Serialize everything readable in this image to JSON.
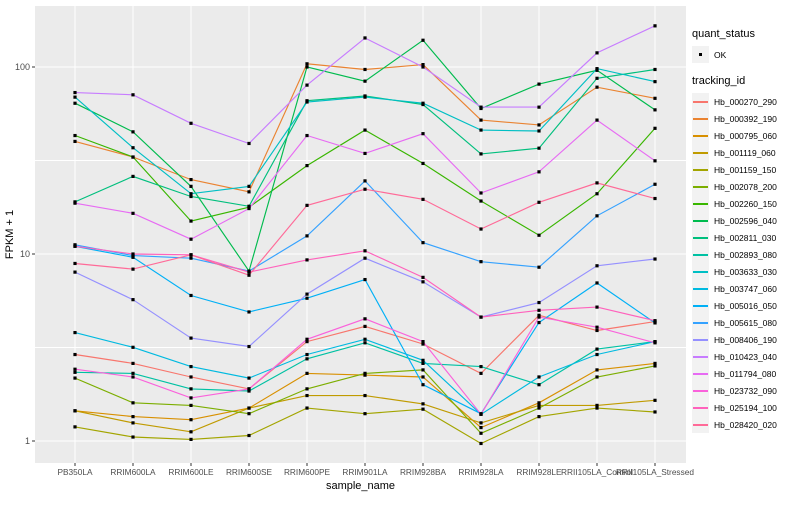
{
  "chart_data": {
    "type": "line",
    "title": "",
    "xlabel": "sample_name",
    "ylabel": "FPKM + 1",
    "y_scale": "log10",
    "y_ticks": [
      "1",
      "10",
      "100"
    ],
    "y_tick_values": [
      1,
      10,
      100
    ],
    "y_minor_gridline_values": [
      3.162,
      31.62
    ],
    "panel_bg": "#EBEBEB",
    "grid_color": "#FFFFFF",
    "tick_label_color": "#4D4D4D",
    "point_symbol": "black-square",
    "legend_position": "right",
    "categories": [
      "PB350LA",
      "RRIM600LA",
      "RRIM600LE",
      "RRIM600SE",
      "RRIM600PE",
      "RRIM901LA",
      "RRIM928BA",
      "RRIM928LA",
      "RRIM928LE",
      "RRII105LA_Control",
      "RRII105LA_Stressed"
    ],
    "series": [
      {
        "name": "Hb_000270_290",
        "color": "#F8766D",
        "values": [
          2.9,
          2.6,
          2.2,
          1.9,
          3.4,
          4.1,
          3.3,
          2.3,
          4.7,
          3.9,
          4.35
        ]
      },
      {
        "name": "Hb_000392_190",
        "color": "#EA8331",
        "values": [
          40,
          33,
          25,
          21.5,
          104,
          97,
          103,
          52,
          49,
          78,
          68
        ]
      },
      {
        "name": "Hb_000795_060",
        "color": "#D89000",
        "values": [
          1.45,
          1.35,
          1.3,
          1.5,
          2.3,
          2.25,
          2.2,
          1.18,
          1.6,
          2.4,
          2.6
        ]
      },
      {
        "name": "Hb_001119_060",
        "color": "#C09B00",
        "values": [
          1.45,
          1.25,
          1.12,
          1.5,
          1.75,
          1.75,
          1.58,
          1.25,
          1.55,
          1.55,
          1.65
        ]
      },
      {
        "name": "Hb_001159_150",
        "color": "#A3A500",
        "values": [
          1.19,
          1.05,
          1.02,
          1.07,
          1.5,
          1.4,
          1.48,
          0.97,
          1.35,
          1.5,
          1.43
        ]
      },
      {
        "name": "Hb_002078_200",
        "color": "#7CAE00",
        "values": [
          2.17,
          1.6,
          1.55,
          1.4,
          1.9,
          2.3,
          2.4,
          1.1,
          1.5,
          2.2,
          2.52
        ]
      },
      {
        "name": "Hb_002260_150",
        "color": "#39B600",
        "values": [
          43,
          33,
          15,
          17.8,
          29.7,
          46,
          30.5,
          19.2,
          12.6,
          21,
          47
        ]
      },
      {
        "name": "Hb_002596_040",
        "color": "#00BB4E",
        "values": [
          64,
          45,
          23,
          8.1,
          100,
          84,
          139,
          60,
          81,
          96,
          59
        ]
      },
      {
        "name": "Hb_002811_030",
        "color": "#00BF7D",
        "values": [
          19,
          26,
          20.3,
          18,
          66,
          70,
          63,
          34.3,
          36.8,
          87,
          97
        ]
      },
      {
        "name": "Hb_002893_080",
        "color": "#00C1A3",
        "values": [
          2.33,
          2.3,
          1.9,
          1.85,
          2.75,
          3.35,
          2.6,
          2.5,
          2.0,
          3.1,
          3.4
        ]
      },
      {
        "name": "Hb_003633_030",
        "color": "#00BFC4",
        "values": [
          69,
          37,
          21,
          23,
          65,
          69,
          64,
          46,
          45.5,
          98,
          83.5
        ]
      },
      {
        "name": "Hb_003747_060",
        "color": "#00BAE0",
        "values": [
          3.8,
          3.17,
          2.5,
          2.17,
          2.9,
          3.5,
          2.7,
          1.39,
          2.2,
          2.9,
          3.4
        ]
      },
      {
        "name": "Hb_005016_050",
        "color": "#00B0F6",
        "values": [
          11,
          9.6,
          6.0,
          4.9,
          5.8,
          7.3,
          2.0,
          1.4,
          4.3,
          7.0,
          4.28
        ]
      },
      {
        "name": "Hb_005615_080",
        "color": "#35A2FF",
        "values": [
          11.2,
          9.8,
          9.5,
          8.1,
          12.5,
          24.6,
          11.5,
          9.1,
          8.5,
          16,
          23.6
        ]
      },
      {
        "name": "Hb_008406_190",
        "color": "#9590FF",
        "values": [
          8.0,
          5.7,
          3.55,
          3.2,
          6.1,
          9.5,
          7.1,
          4.6,
          5.5,
          8.65,
          9.4
        ]
      },
      {
        "name": "Hb_010423_040",
        "color": "#C77CFF",
        "values": [
          73,
          71,
          50,
          39,
          80,
          143,
          100,
          61,
          61,
          119,
          166
        ]
      },
      {
        "name": "Hb_011794_080",
        "color": "#E76BF3",
        "values": [
          18.7,
          16.5,
          12,
          17.5,
          43,
          34.5,
          44,
          21.2,
          27.5,
          52,
          31.5
        ]
      },
      {
        "name": "Hb_023732_090",
        "color": "#FA62DB",
        "values": [
          2.42,
          2.2,
          1.7,
          1.9,
          3.5,
          4.5,
          3.4,
          1.39,
          4.6,
          4.06,
          3.35
        ]
      },
      {
        "name": "Hb_025194_100",
        "color": "#FF62BC",
        "values": [
          11.0,
          10.0,
          9.9,
          8.0,
          9.3,
          10.4,
          7.5,
          4.6,
          5.0,
          5.2,
          4.4
        ]
      },
      {
        "name": "Hb_028420_020",
        "color": "#FF6A98",
        "values": [
          8.9,
          8.3,
          9.9,
          7.7,
          18.2,
          22.2,
          19.6,
          13.6,
          18.9,
          24,
          19.8
        ]
      }
    ],
    "legend": {
      "quant_status_title": "quant_status",
      "quant_status_items": [
        {
          "label": "OK"
        }
      ],
      "tracking_id_title": "tracking_id"
    }
  }
}
